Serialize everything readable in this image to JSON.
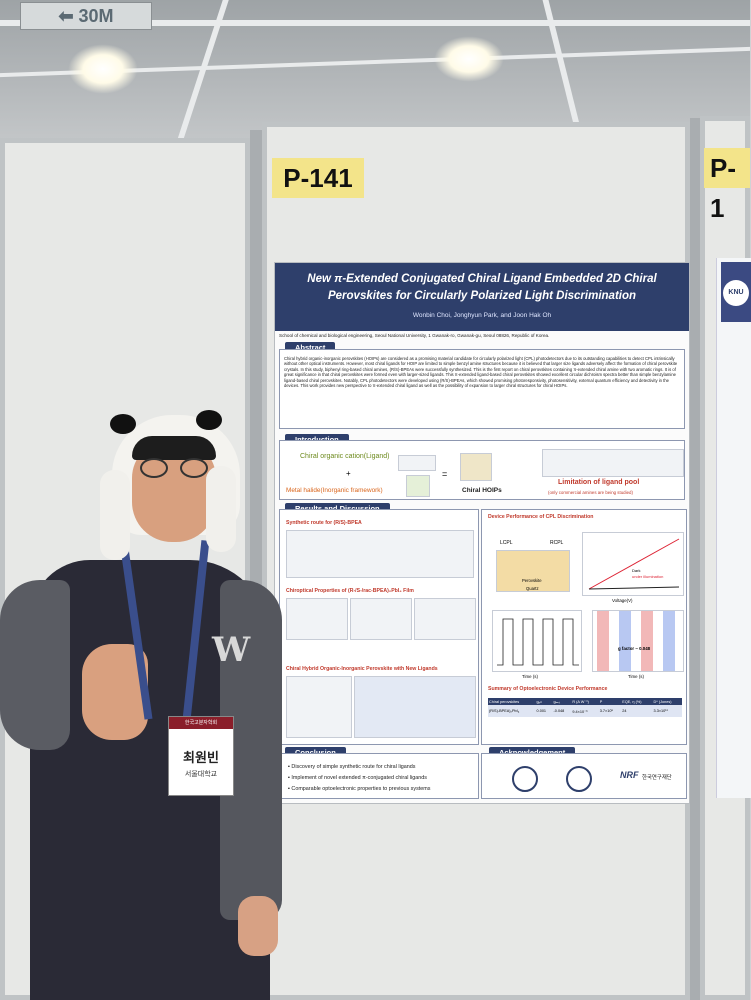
{
  "scene": {
    "exit_sign": "30M",
    "booth_numbers": [
      "P-141",
      "P-1"
    ]
  },
  "poster": {
    "title": "New π-Extended Conjugated Chiral Ligand Embedded 2D Chiral Perovskites for Circularly Polarized Light Discrimination",
    "authors": "Wonbin Choi, Jonghyun Park, and Joon Hak Oh",
    "affiliation": "School of chemical and biological engineering, Seoul National University, 1 Gwanak-ro, Gwanak-gu, Seoul 08826, Republic of Korea.",
    "sections": {
      "abstract": "Abstract",
      "introduction": "Introduction",
      "results": "Results and Discussion",
      "conclusion": "Conclusion",
      "acknowledgement": "Acknowledgement"
    },
    "abstract_text": "Chiral hybrid organic-inorganic perovskites (HOIPs) are considered as a promising material candidate for circularly polarized light (CPL) photodetectors due to its outstanding capabilities to detect CPL intrinsically without other optical instruments. However, most chiral ligands for HOIP are limited to simple benzyl amine structures because it is believed that larger size ligands adversely affect the formation of chiral perovskite crystals. In this study, biphenyl ring-based chiral amines, (R/S)-BPEAs were successfully synthesized. This is the first report on chiral perovskites containing π-extended chiral amine with two aromatic rings. It is of great significance in that chiral perovskites were formed even with larger-sized ligands. This π-extended ligand-based chiral perovskites showed excellent circular dichroism spectra better than simple benzylamine ligand-based chiral perovskites. Notably, CPL photodetectors were developed using (R/S)-BPEAs, which showed promising photoresponsivity, photosensitivity, external quantum efficiency and detectivity in the devices. This work provides new perspective to π-extended chiral ligand as well as the possibility of expansion to larger chiral structures for chiral HOIPs.",
    "intro": {
      "cation": "Chiral organic cation(Ligand)",
      "halide": "Metal halide(Inorganic framework)",
      "product": "Chiral HOIPs",
      "limitation": "Limitation of ligand pool",
      "limitation_note": "(only commercial amines are being studied)"
    },
    "results_heads": [
      "Synthetic route for (R/S)-BPEA",
      "Chiroptical Properties of (R-/S-/rac-BPEA)₂PbI₄ Film",
      "Chiral Hybrid Organic-Inorganic Perovskite with New Ligands"
    ],
    "device_heads": [
      "Device Performance of CPL Discrimination",
      "Summary of Optoelectronic Device Performance"
    ],
    "device_labels": {
      "lcpl": "LCPL",
      "rcpl": "RCPL",
      "perovskite": "Perovskite",
      "quartz": "Quartz",
      "dark": "Dark",
      "illum": "under illumination",
      "gfactor": "g factor ~ 0.048",
      "voltage": "Voltage(V)",
      "time": "Time (s)"
    },
    "table": {
      "headers": [
        "Chiral perovskites",
        "gₚₕ",
        "gₐₑₛ",
        "R (A W⁻¹)",
        "P",
        "EQE, η (%)",
        "D* (Jones)"
      ],
      "row": [
        "(R/S)-BPEA)₂PbI₄",
        "0.001",
        "-0.048",
        "9.4×10⁻³",
        "3.7×10⁵",
        "24",
        "3.3×10¹¹"
      ]
    },
    "conclusion_items": [
      "Discovery of simple synthetic route for chiral ligands",
      "Implement of novel extended π-conjugated chiral ligands",
      "Comparable optoelectronic properties to previous systems"
    ],
    "ack_logos": [
      "NRF",
      "한국연구재단"
    ]
  },
  "nametag": {
    "event": "한국고분자학회",
    "name": "최원빈",
    "org": "서울대학교"
  },
  "side_poster": {
    "badge": "KNU"
  }
}
